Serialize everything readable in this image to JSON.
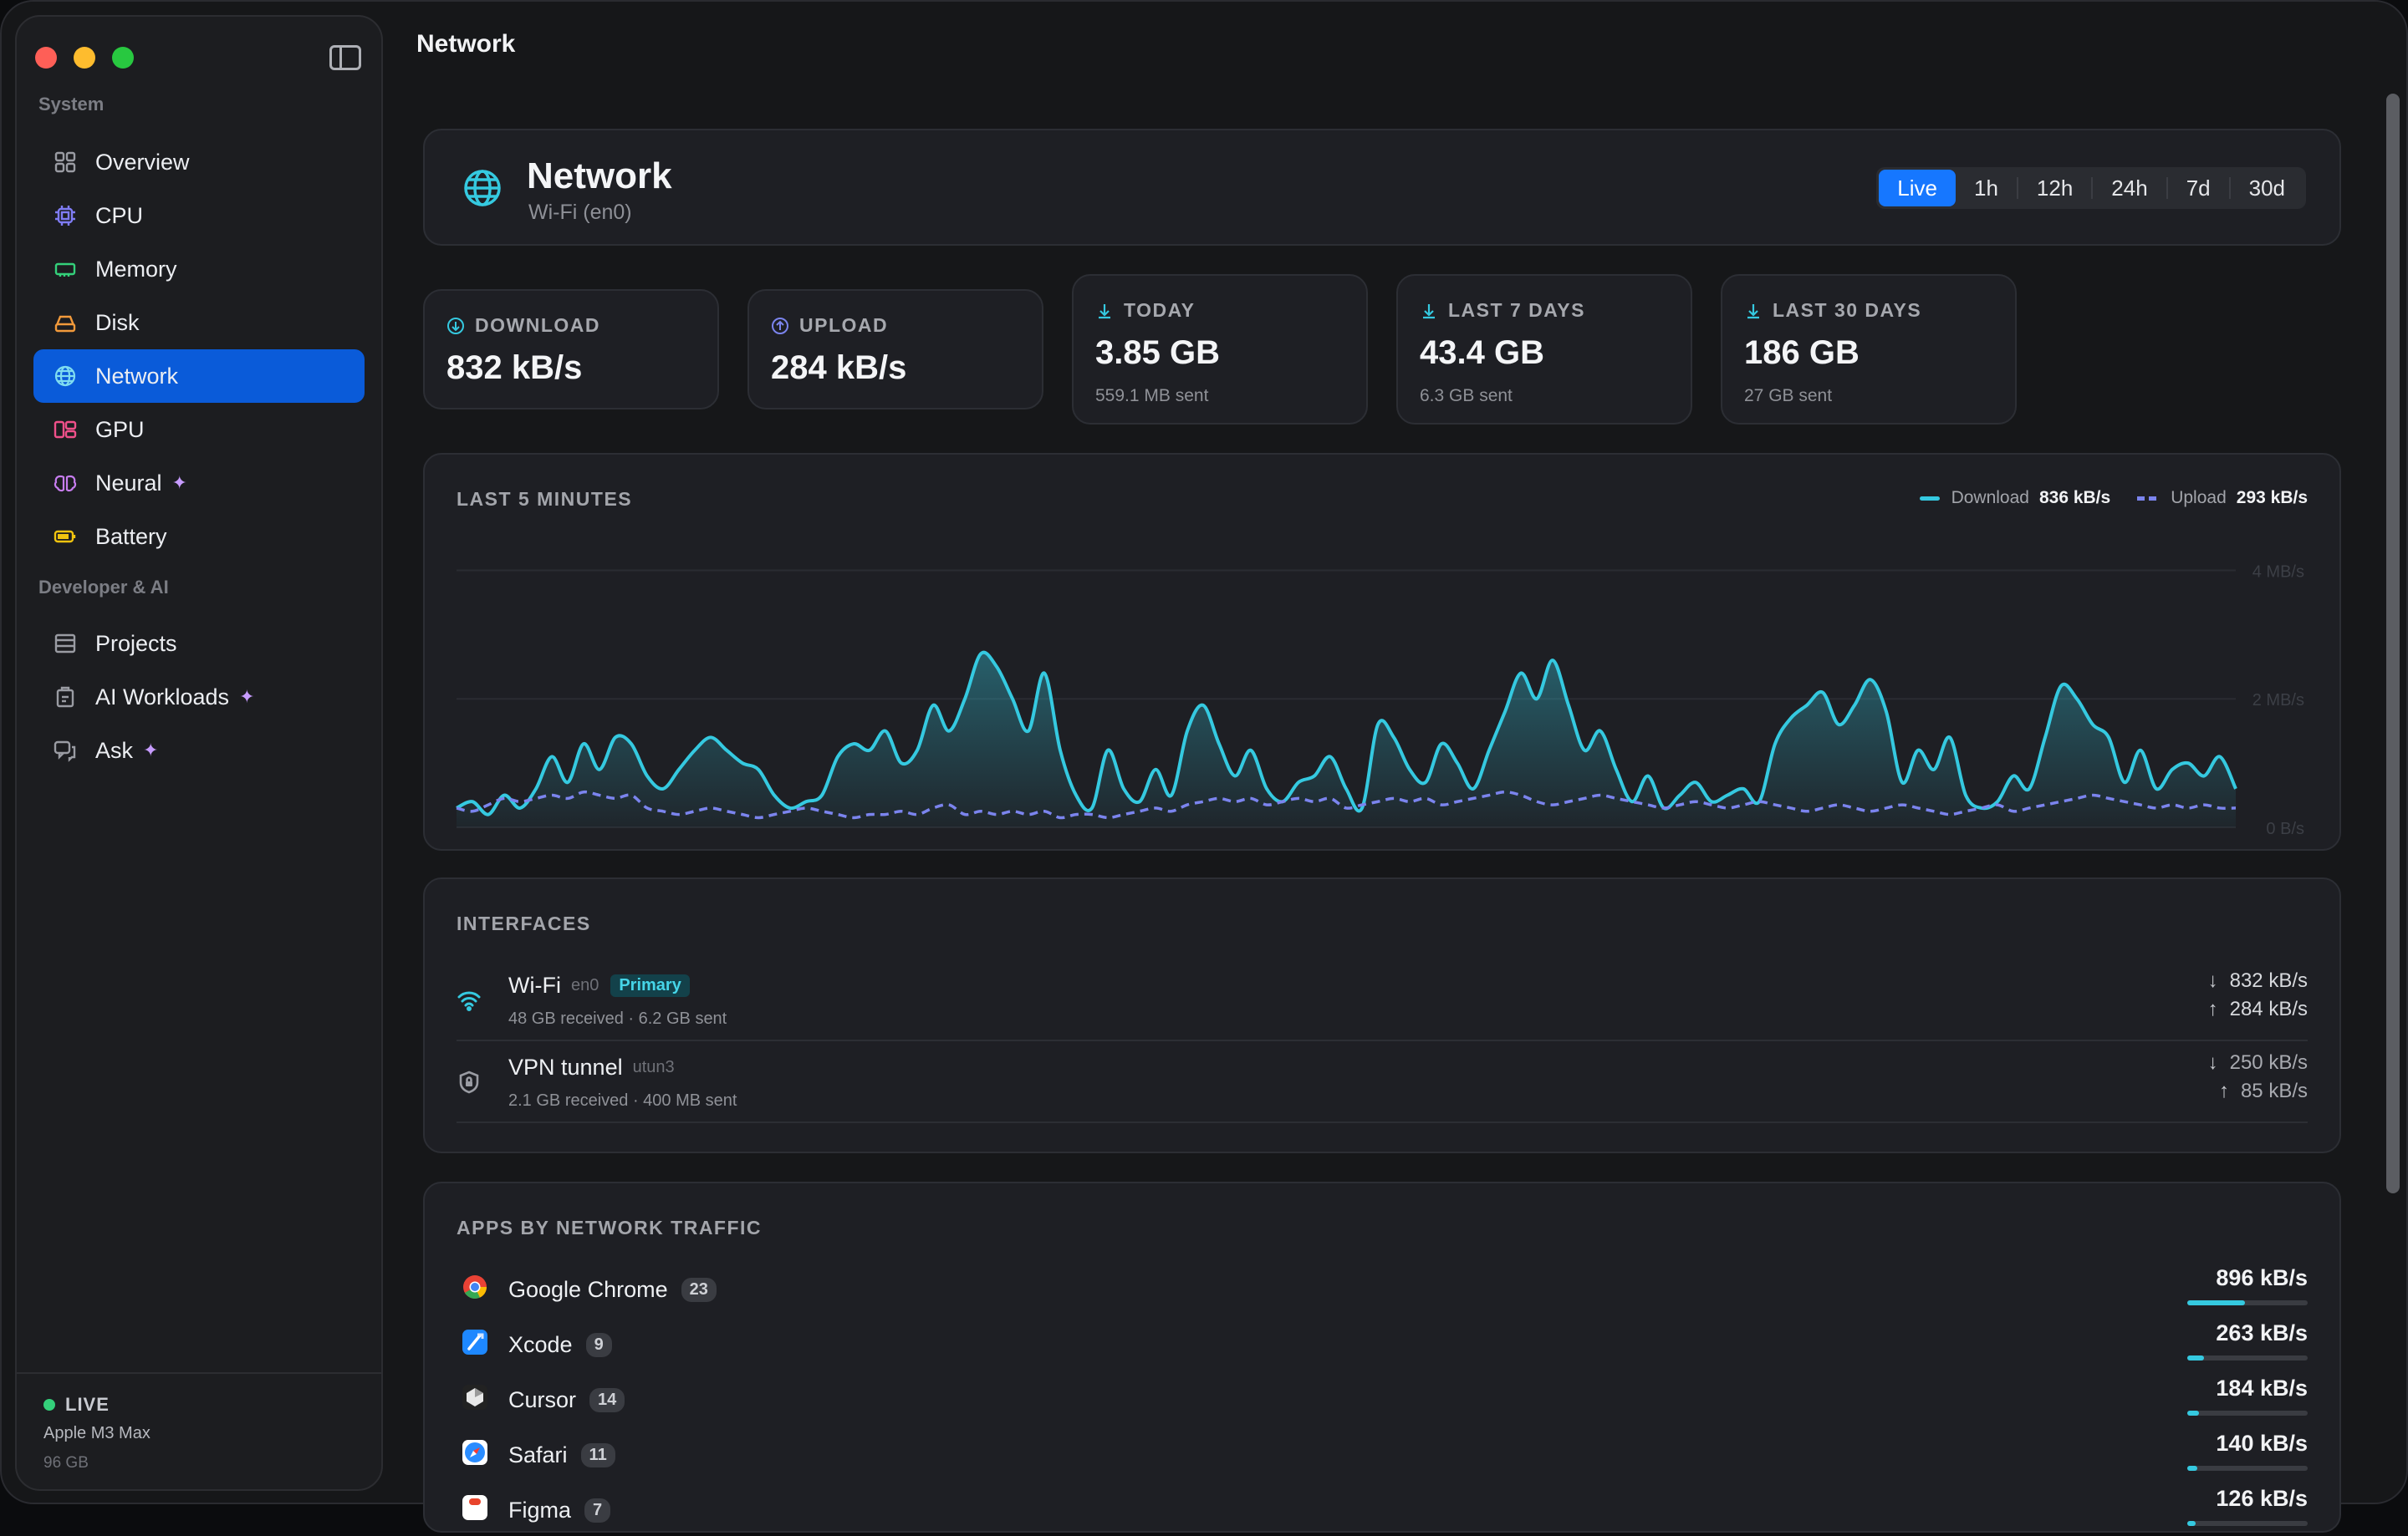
{
  "sidebar": {
    "section_system": "System",
    "section_dev": "Developer & AI",
    "items": [
      {
        "label": "Overview",
        "icon": "grid-icon"
      },
      {
        "label": "CPU",
        "icon": "cpu-icon"
      },
      {
        "label": "Memory",
        "icon": "memory-icon"
      },
      {
        "label": "Disk",
        "icon": "disk-icon"
      },
      {
        "label": "Network",
        "icon": "globe-icon",
        "active": true
      },
      {
        "label": "GPU",
        "icon": "gpu-icon"
      },
      {
        "label": "Neural",
        "icon": "brain-icon",
        "spark": true
      },
      {
        "label": "Battery",
        "icon": "battery-icon"
      },
      {
        "label": "Projects",
        "icon": "projects-icon"
      },
      {
        "label": "AI Workloads",
        "icon": "workloads-icon",
        "spark": true
      },
      {
        "label": "Ask",
        "icon": "chat-icon",
        "spark": true
      }
    ],
    "footer": {
      "status": "LIVE",
      "chip": "Apple M3 Max",
      "memory": "96 GB"
    }
  },
  "page_title": "Network",
  "hero": {
    "title": "Network",
    "subtitle": "Wi-Fi (en0)",
    "ranges": [
      "Live",
      "1h",
      "12h",
      "24h",
      "7d",
      "30d"
    ],
    "active_range": "Live"
  },
  "stats": [
    {
      "label": "DOWNLOAD",
      "value": "832 kB/s"
    },
    {
      "label": "UPLOAD",
      "value": "284 kB/s"
    },
    {
      "label": "TODAY",
      "value": "3.85 GB",
      "sub": "559.1 MB sent"
    },
    {
      "label": "LAST 7 DAYS",
      "value": "43.4 GB",
      "sub": "6.3 GB sent"
    },
    {
      "label": "LAST 30 DAYS",
      "value": "186 GB",
      "sub": "27 GB sent"
    }
  ],
  "chart_card": {
    "heading": "LAST 5 MINUTES",
    "legend_download": "Download",
    "legend_download_value": "836 kB/s",
    "legend_upload": "Upload",
    "legend_upload_value": "293 kB/s"
  },
  "chart_data": {
    "type": "area",
    "y_ticks": [
      "4 MB/s",
      "2 MB/s",
      "0 B/s"
    ],
    "ylim": [
      0,
      4.5
    ],
    "grid": true,
    "legend": "top-right",
    "series": [
      {
        "name": "Download",
        "color": "#35c9e0",
        "style": "solid-area",
        "values": [
          0.3,
          0.4,
          0.2,
          0.5,
          0.3,
          0.6,
          1.1,
          0.7,
          1.3,
          0.9,
          1.4,
          1.3,
          0.8,
          0.6,
          0.9,
          1.2,
          1.4,
          1.2,
          1.0,
          0.9,
          0.5,
          0.3,
          0.4,
          0.5,
          1.1,
          1.3,
          1.2,
          1.5,
          1.0,
          1.2,
          1.9,
          1.5,
          2.0,
          2.7,
          2.5,
          2.0,
          1.5,
          2.4,
          1.2,
          0.5,
          0.3,
          1.2,
          0.6,
          0.4,
          0.9,
          0.5,
          1.5,
          1.9,
          1.3,
          0.8,
          1.2,
          0.6,
          0.4,
          0.7,
          0.8,
          1.1,
          0.6,
          0.3,
          1.6,
          1.4,
          0.9,
          0.7,
          1.3,
          1.0,
          0.6,
          1.2,
          1.8,
          2.4,
          2.0,
          2.6,
          1.9,
          1.2,
          1.5,
          0.9,
          0.4,
          0.8,
          0.3,
          0.5,
          0.7,
          0.4,
          0.5,
          0.6,
          0.4,
          1.3,
          1.7,
          1.9,
          2.1,
          1.6,
          1.9,
          2.3,
          1.8,
          0.7,
          1.2,
          0.9,
          1.4,
          0.5,
          0.3,
          0.4,
          0.8,
          0.6,
          1.4,
          2.2,
          2.0,
          1.6,
          1.4,
          0.7,
          1.2,
          0.6,
          0.9,
          1.0,
          0.8,
          1.1,
          0.6
        ]
      },
      {
        "name": "Upload",
        "color": "#7b84ee",
        "style": "dashed",
        "values": [
          0.3,
          0.25,
          0.35,
          0.45,
          0.4,
          0.45,
          0.5,
          0.45,
          0.55,
          0.5,
          0.45,
          0.5,
          0.3,
          0.25,
          0.2,
          0.25,
          0.3,
          0.25,
          0.2,
          0.15,
          0.2,
          0.25,
          0.3,
          0.25,
          0.2,
          0.15,
          0.2,
          0.2,
          0.25,
          0.2,
          0.3,
          0.35,
          0.2,
          0.25,
          0.2,
          0.25,
          0.2,
          0.25,
          0.15,
          0.2,
          0.2,
          0.15,
          0.2,
          0.25,
          0.3,
          0.25,
          0.35,
          0.4,
          0.45,
          0.4,
          0.45,
          0.35,
          0.4,
          0.45,
          0.4,
          0.45,
          0.3,
          0.35,
          0.4,
          0.45,
          0.4,
          0.45,
          0.35,
          0.4,
          0.45,
          0.5,
          0.55,
          0.5,
          0.4,
          0.35,
          0.4,
          0.45,
          0.5,
          0.45,
          0.4,
          0.35,
          0.3,
          0.35,
          0.4,
          0.35,
          0.3,
          0.35,
          0.4,
          0.35,
          0.3,
          0.25,
          0.3,
          0.35,
          0.3,
          0.25,
          0.3,
          0.35,
          0.3,
          0.25,
          0.2,
          0.25,
          0.3,
          0.35,
          0.25,
          0.3,
          0.35,
          0.4,
          0.45,
          0.5,
          0.45,
          0.4,
          0.35,
          0.3,
          0.35,
          0.3,
          0.35,
          0.3,
          0.3
        ]
      }
    ]
  },
  "interfaces": {
    "heading": "INTERFACES",
    "rows": [
      {
        "name": "Wi-Fi",
        "device": "en0",
        "badge": "Primary",
        "sub": "48 GB received · 6.2 GB sent",
        "down": "832 kB/s",
        "up": "284 kB/s",
        "icon": "wifi-icon"
      },
      {
        "name": "VPN tunnel",
        "device": "utun3",
        "sub": "2.1 GB received · 400 MB sent",
        "down": "250 kB/s",
        "up": "85 kB/s",
        "icon": "shield-lock-icon"
      }
    ]
  },
  "apps": {
    "heading": "APPS BY NETWORK TRAFFIC",
    "rows": [
      {
        "name": "Google Chrome",
        "count": "23",
        "rate": "896 kB/s",
        "share": 0.48,
        "icon": "chrome-icon",
        "color": "#f1c40f"
      },
      {
        "name": "Xcode",
        "count": "9",
        "rate": "263 kB/s",
        "share": 0.14,
        "icon": "xcode-icon",
        "color": "#1e88ff"
      },
      {
        "name": "Cursor",
        "count": "14",
        "rate": "184 kB/s",
        "share": 0.1,
        "icon": "cursor-icon",
        "color": "#2a2a2a"
      },
      {
        "name": "Safari",
        "count": "11",
        "rate": "140 kB/s",
        "share": 0.08,
        "icon": "safari-icon",
        "color": "#2a8cff"
      },
      {
        "name": "Figma",
        "count": "7",
        "rate": "126 kB/s",
        "share": 0.07,
        "icon": "figma-icon",
        "color": "#e8442c"
      }
    ]
  }
}
